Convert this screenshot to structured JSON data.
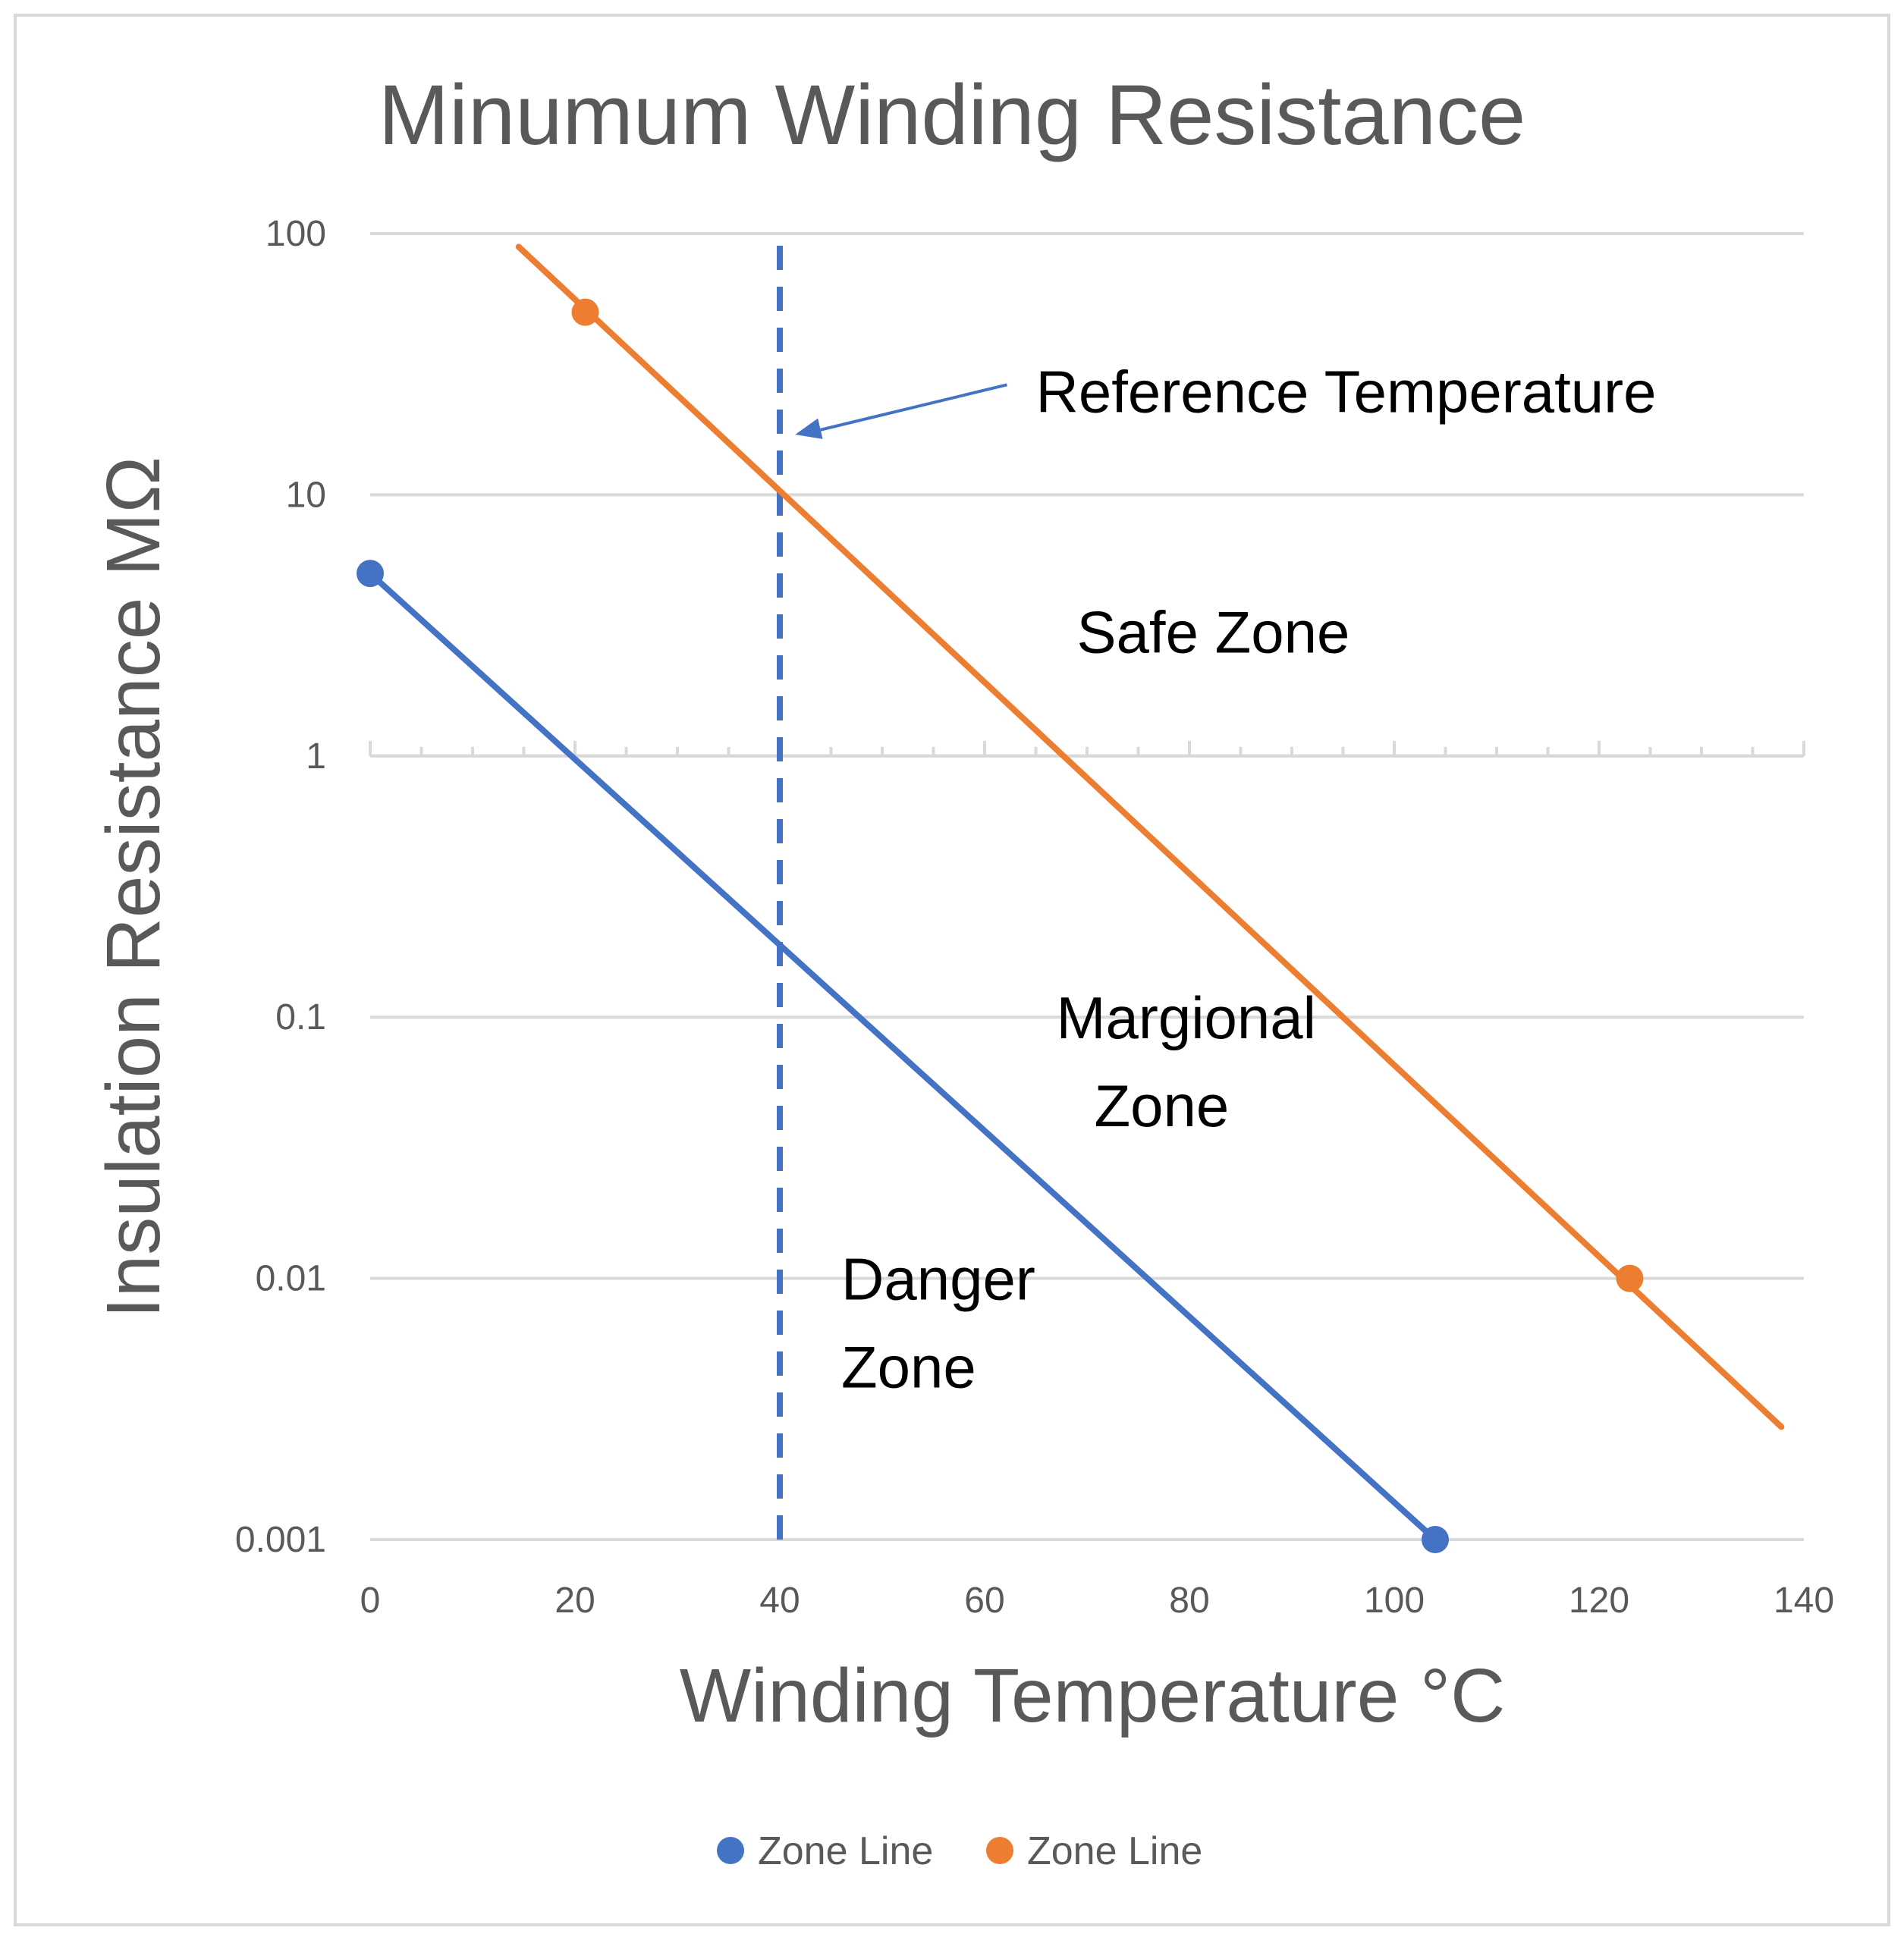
{
  "chart_data": {
    "type": "scatter",
    "title": "Minumum Winding Resistance",
    "xlabel": "Winding Temperature °C",
    "ylabel": "Insulation Resistance MΩ",
    "xlim": [
      0,
      140
    ],
    "ylim": [
      0.001,
      100
    ],
    "yscale": "log",
    "grid": true,
    "legend_position": "bottom",
    "x_ticks": [
      0,
      20,
      40,
      60,
      80,
      100,
      120,
      140
    ],
    "x_tick_labels": [
      "0",
      "20",
      "40",
      "60",
      "80",
      "100",
      "120",
      "140"
    ],
    "y_ticks": [
      100,
      10,
      1,
      0.1,
      0.01,
      0.001
    ],
    "y_tick_labels": [
      "100",
      "10",
      "1",
      "0.1",
      "0.01",
      "0.001"
    ],
    "series": [
      {
        "name": "Zone Line",
        "color": "#4472c4",
        "points": [
          {
            "x": 0,
            "y": 5
          },
          {
            "x": 104,
            "y": 0.001
          }
        ],
        "line": [
          {
            "x": 0,
            "y": 5
          },
          {
            "x": 104,
            "y": 0.001
          }
        ]
      },
      {
        "name": "Zone Line",
        "color": "#ed7d31",
        "points": [
          {
            "x": 21,
            "y": 50
          },
          {
            "x": 123,
            "y": 0.01
          }
        ],
        "line": [
          {
            "x": 14.5,
            "y": 89
          },
          {
            "x": 137.8,
            "y": 0.0027
          }
        ]
      }
    ],
    "reference_line": {
      "x": 40,
      "y_from": 0.001,
      "y_to": 90,
      "color": "#4472c4",
      "style": "dashed"
    },
    "annotations": [
      {
        "id": "reference",
        "lines": [
          "Reference Temperature"
        ],
        "x": 65,
        "y": 25,
        "arrow_to": {
          "x": 41.5,
          "y": 17
        }
      },
      {
        "id": "safe",
        "lines": [
          "Safe Zone"
        ],
        "x": 69,
        "y": 3
      },
      {
        "id": "margional",
        "lines": [
          "Margional",
          "Zone"
        ],
        "x": 67,
        "y": 0.1
      },
      {
        "id": "danger",
        "lines": [
          "Danger",
          "Zone"
        ],
        "x": 46,
        "y": 0.01
      }
    ]
  }
}
